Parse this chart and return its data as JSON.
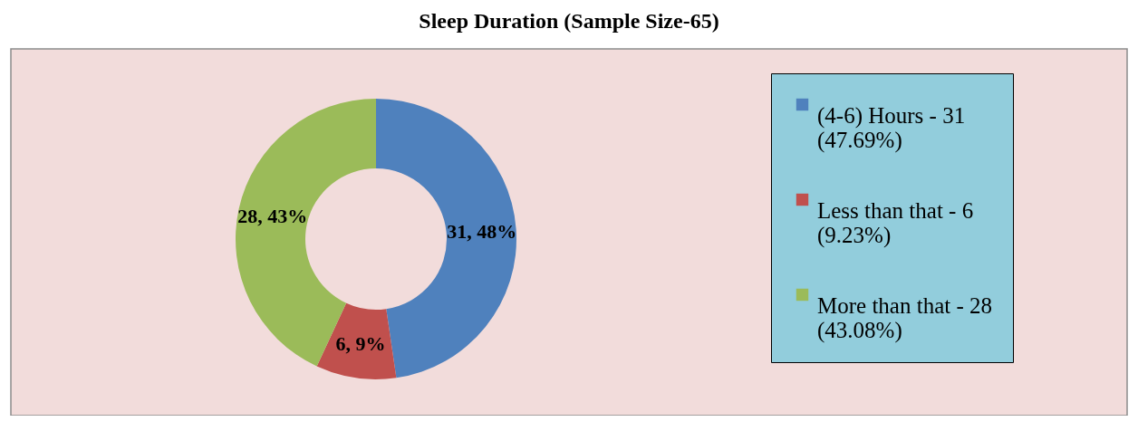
{
  "chart_data": {
    "type": "donut",
    "title": "Sleep Duration (Sample Size-65)",
    "categories": [
      "(4-6) Hours - 31 (47.69%)",
      "Less than that - 6 (9.23%)",
      "More than that - 28 (43.08%)"
    ],
    "values": [
      31,
      6,
      28
    ],
    "colors": [
      "#4f81bd",
      "#c0504d",
      "#9bbb59"
    ],
    "value_labels": [
      "31, 48%",
      "6, 9%",
      "28, 43%"
    ],
    "legend": "right"
  }
}
